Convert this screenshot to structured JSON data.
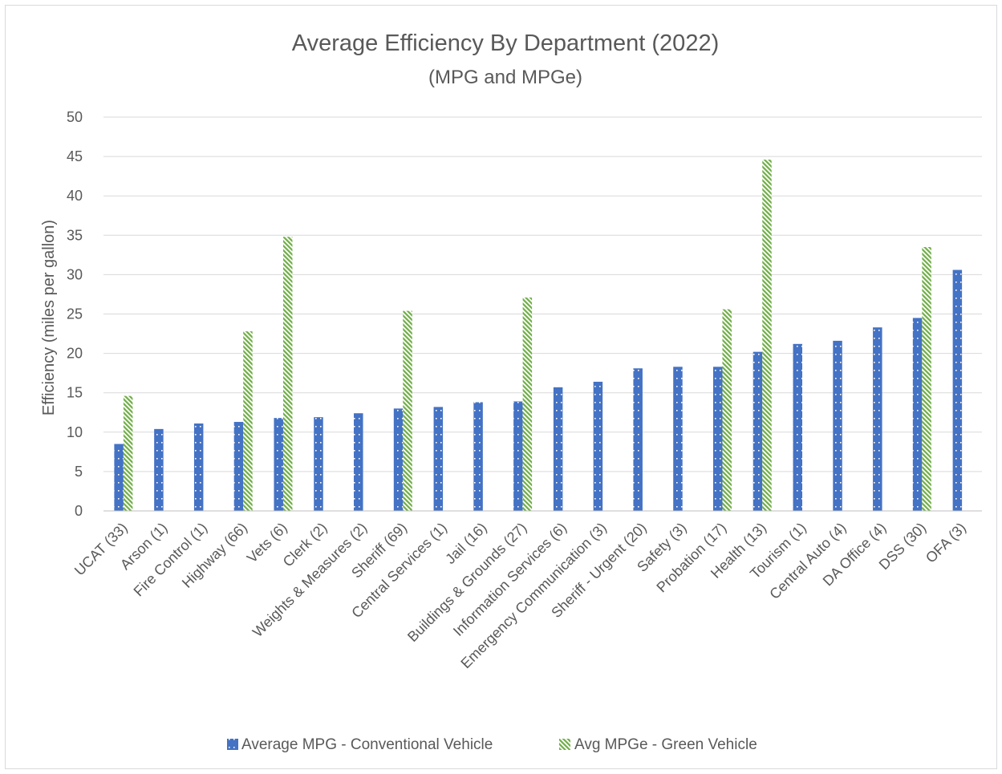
{
  "chart_data": {
    "type": "bar",
    "title": "Average Efficiency By Department (2022)",
    "subtitle": "(MPG and MPGe)",
    "xlabel": "",
    "ylabel": "Efficiency (miles per gallon)",
    "ylim": [
      0,
      50
    ],
    "yticks": [
      0,
      5,
      10,
      15,
      20,
      25,
      30,
      35,
      40,
      45,
      50
    ],
    "grid": true,
    "legend_position": "bottom",
    "categories": [
      "UCAT (33)",
      "Arson (1)",
      "Fire Control (1)",
      "Highway (66)",
      "Vets (6)",
      "Clerk (2)",
      "Weights & Measures (2)",
      "Sheriff (69)",
      "Central Services (1)",
      "Jail (16)",
      "Buildings & Grounds (27)",
      "Information Services (6)",
      "Emergency Communication (3)",
      "Sheriff - Urgent (20)",
      "Safety (3)",
      "Probation (17)",
      "Health (13)",
      "Tourism (1)",
      "Central Auto (4)",
      "DA Office (4)",
      "DSS (30)",
      "OFA (3)"
    ],
    "series": [
      {
        "name": "Average MPG - Conventional Vehicle",
        "color": "#4472c4",
        "pattern": "dotted",
        "values": [
          8.5,
          10.4,
          11.1,
          11.3,
          11.8,
          11.9,
          12.4,
          13.0,
          13.2,
          13.8,
          13.9,
          15.7,
          16.4,
          18.1,
          18.3,
          18.3,
          20.2,
          21.2,
          21.6,
          23.3,
          24.5,
          30.6
        ]
      },
      {
        "name": "Avg MPGe - Green Vehicle",
        "color": "#70ad47",
        "pattern": "diagonal-stripes",
        "values": [
          14.6,
          null,
          null,
          22.8,
          34.8,
          null,
          null,
          25.4,
          null,
          null,
          27.1,
          null,
          null,
          null,
          null,
          25.6,
          44.6,
          null,
          null,
          null,
          33.5,
          null
        ]
      }
    ]
  }
}
